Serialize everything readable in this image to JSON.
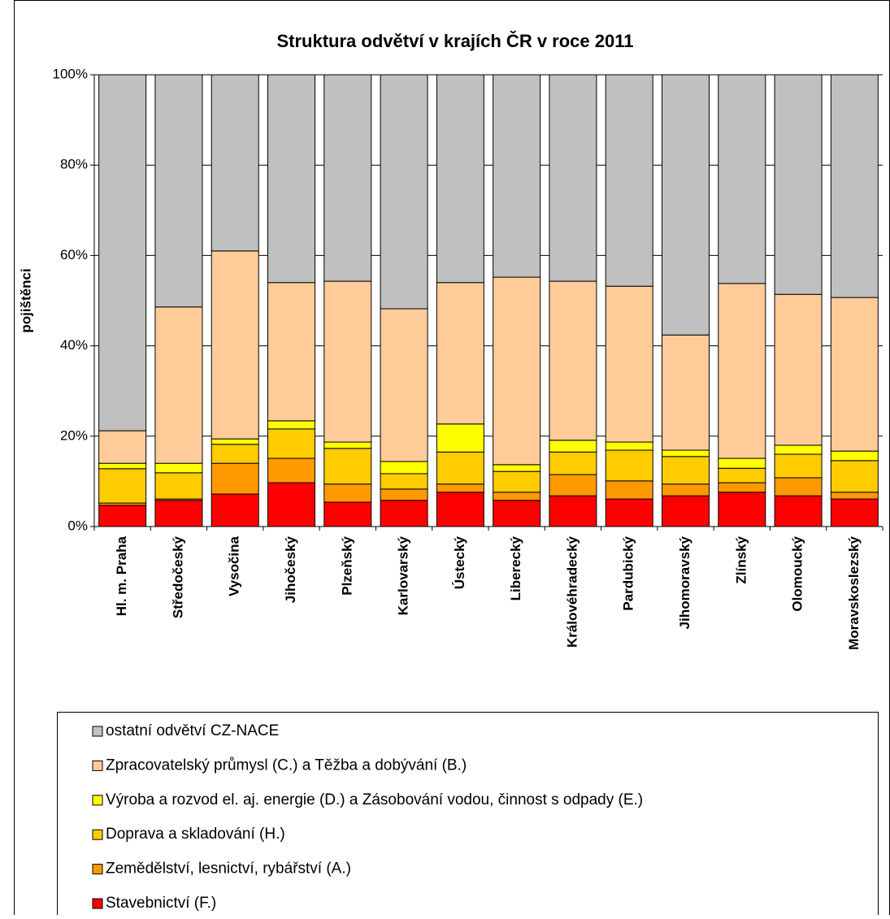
{
  "chart_data": {
    "type": "stacked_bar",
    "title": "Struktura odvětví v krajích ČR v roce 2011",
    "y_label": "pojištěnci",
    "categories": [
      "Hl. m. Praha",
      "Středočeský",
      "Vysočina",
      "Jihočeský",
      "Plzeňský",
      "Karlovarský",
      "Ústecký",
      "Liberecký",
      "Královéhradecký",
      "Pardubický",
      "Jihomoravský",
      "Zlínský",
      "Olomoucký",
      "Moravskoslezský"
    ],
    "series": [
      {
        "name": "Stavebnictví (F.)",
        "color": "#ff0000",
        "values": [
          4.7,
          5.8,
          7.2,
          9.7,
          5.4,
          5.8,
          7.6,
          5.8,
          6.8,
          6.1,
          6.8,
          7.6,
          6.8,
          6.1
        ]
      },
      {
        "name": "Zemědělství, lesnictví, rybářství (A.)",
        "color": "#ff9900",
        "values": [
          0.5,
          0.3,
          6.8,
          5.4,
          4.0,
          2.5,
          1.8,
          1.8,
          4.7,
          4.0,
          2.6,
          2.1,
          4.0,
          1.5
        ]
      },
      {
        "name": "Doprava a skladování (H.)",
        "color": "#ffcc00",
        "values": [
          7.6,
          5.8,
          4.2,
          6.5,
          7.9,
          3.4,
          7.1,
          4.6,
          5.0,
          6.8,
          6.1,
          3.2,
          5.2,
          7.0
        ]
      },
      {
        "name": "Výroba a rozvod el. aj. energie (D.) a Zásobování vodou, činnost s odpady (E.)",
        "color": "#ffff00",
        "values": [
          1.2,
          2.1,
          1.2,
          1.8,
          1.4,
          2.7,
          6.2,
          1.5,
          2.6,
          1.8,
          1.4,
          2.2,
          2.0,
          2.1
        ]
      },
      {
        "name": "Zpracovatelský průmysl (C.) a Těžba a dobývání (B.)",
        "color": "#ffcc99",
        "values": [
          7.2,
          34.6,
          41.6,
          30.6,
          35.6,
          33.8,
          31.3,
          41.5,
          35.2,
          34.5,
          25.5,
          38.7,
          33.4,
          34.0
        ]
      },
      {
        "name": "ostatní odvětví CZ-NACE",
        "color": "#c0c0c0",
        "values": [
          78.8,
          51.4,
          39.0,
          46.0,
          45.7,
          51.8,
          46.0,
          44.8,
          45.7,
          46.8,
          57.6,
          46.2,
          48.6,
          49.3
        ]
      }
    ],
    "ylim": [
      0,
      100
    ],
    "yticks": [
      {
        "value": 0,
        "label": "0%"
      },
      {
        "value": 20,
        "label": "20%"
      },
      {
        "value": 40,
        "label": "40%"
      },
      {
        "value": 60,
        "label": "60%"
      },
      {
        "value": 80,
        "label": "80%"
      },
      {
        "value": 100,
        "label": "100%"
      }
    ],
    "grid": true
  }
}
